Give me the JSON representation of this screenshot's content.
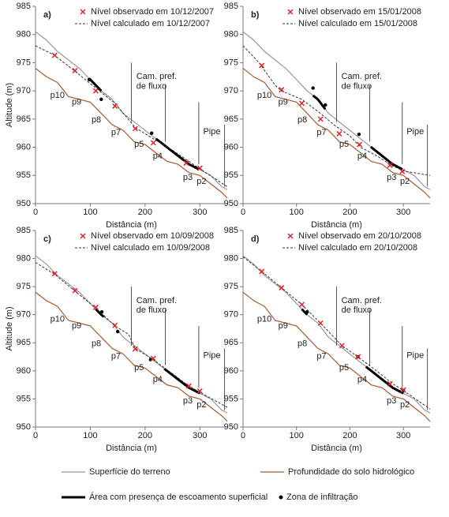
{
  "chart_data": [
    {
      "type": "line",
      "title": "a)",
      "y_label": "Altitude (m)",
      "x_label": "Distância (m)",
      "xlim": [
        0,
        350
      ],
      "xticks": [
        0,
        100,
        200,
        300
      ],
      "ylim": [
        950,
        985
      ],
      "yticks": [
        950,
        955,
        960,
        965,
        970,
        975,
        980,
        985
      ],
      "series": [
        {
          "name": "Nível observado em 10/12/2007",
          "color": "#d9262a",
          "marker": "x",
          "x": [
            35,
            72,
            110,
            145,
            182,
            215,
            275,
            300
          ],
          "values": [
            976.3,
            973.6,
            970,
            967.3,
            963.3,
            960.8,
            957.2,
            956.3
          ]
        },
        {
          "name": "Nível calculado em 10/12/2007",
          "color": "#333333",
          "dash": true,
          "x": [
            0,
            35,
            72,
            110,
            145,
            182,
            215,
            250,
            280,
            300,
            350
          ],
          "values": [
            978,
            976.3,
            973.5,
            970.5,
            967.8,
            963.5,
            961.5,
            959.5,
            957.5,
            956.2,
            953
          ]
        }
      ],
      "runoff": [
        [
          98,
          120
        ],
        [
          220,
          298
        ]
      ],
      "infiltration": {
        "x": [
          98,
          120,
          212
        ],
        "values": [
          972,
          968.5,
          962.5
        ]
      },
      "vlines": [
        {
          "x": 175,
          "ylim": [
            964.5,
            975
          ]
        },
        {
          "x": 237,
          "ylim": [
            961,
            971
          ]
        },
        {
          "x": 298,
          "ylim": [
            957,
            968
          ]
        },
        {
          "x": 345,
          "ylim": [
            953,
            964
          ]
        }
      ],
      "annotations": [
        {
          "text": "p10",
          "x": 40,
          "y": 969.2
        },
        {
          "text": "p9",
          "x": 75,
          "y": 968
        },
        {
          "text": "p8",
          "x": 111,
          "y": 964.8
        },
        {
          "text": "p7",
          "x": 147,
          "y": 962.6
        },
        {
          "text": "p5",
          "x": 189,
          "y": 960.5
        },
        {
          "text": "p4",
          "x": 223,
          "y": 958.4
        },
        {
          "text": "p3",
          "x": 278,
          "y": 954.6
        },
        {
          "text": "p2",
          "x": 303,
          "y": 953.9
        },
        {
          "text": "Cam. pref.",
          "x": 184,
          "y": 972.5
        },
        {
          "text": "de fluxo",
          "x": 184,
          "y": 970.8
        },
        {
          "text": "Pipe",
          "x": 306,
          "y": 962.7
        }
      ]
    },
    {
      "type": "line",
      "title": "b)",
      "x_label": "Distância (m)",
      "xlim": [
        0,
        350
      ],
      "xticks": [
        0,
        100,
        200,
        300
      ],
      "ylim": [
        950,
        985
      ],
      "yticks": [
        950,
        955,
        960,
        965,
        970,
        975,
        980,
        985
      ],
      "series": [
        {
          "name": "Nível observado em 15/01/2008",
          "color": "#d9262a",
          "marker": "x",
          "x": [
            35,
            72,
            110,
            145,
            180,
            218,
            275,
            298
          ],
          "values": [
            974.5,
            970.2,
            967.8,
            965,
            962.4,
            960.5,
            956.8,
            955.7
          ]
        },
        {
          "name": "Nível calculado em 15/01/2008",
          "color": "#333333",
          "dash": true,
          "x": [
            0,
            30,
            60,
            72,
            110,
            145,
            170,
            200,
            220,
            250,
            280,
            300,
            350
          ],
          "values": [
            978,
            975,
            971,
            970,
            968.5,
            966,
            964,
            962,
            960,
            958.5,
            956.7,
            955.8,
            955
          ]
        }
      ],
      "runoff": [
        [
          131,
          154
        ],
        [
          239,
          298
        ]
      ],
      "infiltration": {
        "x": [
          131,
          154,
          217
        ],
        "values": [
          970.5,
          967.5,
          962.3
        ]
      },
      "vlines": [
        {
          "x": 175,
          "ylim": [
            964.5,
            975
          ]
        },
        {
          "x": 237,
          "ylim": [
            961,
            971
          ]
        },
        {
          "x": 298,
          "ylim": [
            957,
            968
          ]
        },
        {
          "x": 345,
          "ylim": [
            953,
            964
          ]
        }
      ],
      "annotations": [
        {
          "text": "p10",
          "x": 40,
          "y": 969.2
        },
        {
          "text": "p9",
          "x": 75,
          "y": 968
        },
        {
          "text": "p8",
          "x": 111,
          "y": 964.8
        },
        {
          "text": "p7",
          "x": 147,
          "y": 962.6
        },
        {
          "text": "p5",
          "x": 189,
          "y": 960.5
        },
        {
          "text": "p4",
          "x": 223,
          "y": 958.4
        },
        {
          "text": "p3",
          "x": 278,
          "y": 954.6
        },
        {
          "text": "p2",
          "x": 303,
          "y": 953.9
        },
        {
          "text": "Cam. pref.",
          "x": 184,
          "y": 972.5
        },
        {
          "text": "de fluxo",
          "x": 184,
          "y": 970.8
        },
        {
          "text": "Pipe",
          "x": 306,
          "y": 962.7
        }
      ]
    },
    {
      "type": "line",
      "title": "c)",
      "y_label": "Altitude (m)",
      "x_label": "Distância (m)",
      "xlim": [
        0,
        350
      ],
      "xticks": [
        0,
        100,
        200,
        300
      ],
      "ylim": [
        950,
        985
      ],
      "yticks": [
        950,
        955,
        960,
        965,
        970,
        975,
        980,
        985
      ],
      "series": [
        {
          "name": "Nível observado em 10/09/2008",
          "color": "#d9262a",
          "marker": "x",
          "x": [
            35,
            72,
            110,
            145,
            182,
            215,
            280,
            300
          ],
          "values": [
            977.3,
            974.3,
            971.3,
            968.1,
            963.9,
            962.2,
            957.3,
            956.4
          ]
        },
        {
          "name": "Nível calculado em 10/09/2008",
          "color": "#333333",
          "dash": true,
          "x": [
            0,
            35,
            72,
            110,
            145,
            170,
            182,
            215,
            250,
            280,
            300,
            350
          ],
          "values": [
            979.3,
            977.2,
            974.2,
            971.2,
            968,
            966.5,
            964,
            962,
            959.5,
            957.3,
            956.2,
            953.5
          ]
        }
      ],
      "runoff": [
        [
          110,
          125
        ],
        [
          235,
          300
        ]
      ],
      "infiltration": {
        "x": [
          121,
          150,
          210
        ],
        "values": [
          970.5,
          967,
          962
        ]
      },
      "vlines": [
        {
          "x": 175,
          "ylim": [
            964.5,
            975
          ]
        },
        {
          "x": 237,
          "ylim": [
            961,
            971
          ]
        },
        {
          "x": 298,
          "ylim": [
            957,
            968
          ]
        },
        {
          "x": 345,
          "ylim": [
            953,
            964
          ]
        }
      ],
      "annotations": [
        {
          "text": "p10",
          "x": 40,
          "y": 969.2
        },
        {
          "text": "p9",
          "x": 75,
          "y": 968
        },
        {
          "text": "p8",
          "x": 111,
          "y": 964.8
        },
        {
          "text": "p7",
          "x": 147,
          "y": 962.6
        },
        {
          "text": "p5",
          "x": 189,
          "y": 960.5
        },
        {
          "text": "p4",
          "x": 223,
          "y": 958.4
        },
        {
          "text": "p3",
          "x": 278,
          "y": 954.6
        },
        {
          "text": "p2",
          "x": 303,
          "y": 953.9
        },
        {
          "text": "Cam. pref.",
          "x": 184,
          "y": 972.5
        },
        {
          "text": "de fluxo",
          "x": 184,
          "y": 970.8
        },
        {
          "text": "Pipe",
          "x": 306,
          "y": 962.7
        }
      ]
    },
    {
      "type": "line",
      "title": "d)",
      "x_label": "Distância (m)",
      "xlim": [
        0,
        350
      ],
      "xticks": [
        0,
        100,
        200,
        300
      ],
      "ylim": [
        950,
        985
      ],
      "yticks": [
        950,
        955,
        960,
        965,
        970,
        975,
        980,
        985
      ],
      "series": [
        {
          "name": "Nível observado em 20/10/2008",
          "color": "#d9262a",
          "marker": "x",
          "x": [
            35,
            72,
            110,
            145,
            185,
            215,
            275,
            300
          ],
          "values": [
            977.7,
            974.8,
            971.8,
            968.5,
            964.5,
            962.5,
            957.7,
            956.6
          ]
        },
        {
          "name": "Nível calculado em 20/10/2008",
          "color": "#333333",
          "dash": true,
          "x": [
            0,
            35,
            72,
            110,
            145,
            185,
            215,
            250,
            280,
            300,
            350
          ],
          "values": [
            980.3,
            977.7,
            974.8,
            971.8,
            968.5,
            964.5,
            962.5,
            960,
            957.7,
            956.5,
            953.2
          ]
        }
      ],
      "runoff": [
        [
          110,
          120
        ],
        [
          230,
          300
        ]
      ],
      "infiltration": {
        "x": [
          120,
          215,
          300
        ],
        "values": [
          970.5,
          962.5,
          956.5
        ]
      },
      "vlines": [
        {
          "x": 175,
          "ylim": [
            964.5,
            975
          ]
        },
        {
          "x": 237,
          "ylim": [
            961,
            971
          ]
        },
        {
          "x": 298,
          "ylim": [
            957,
            968
          ]
        },
        {
          "x": 345,
          "ylim": [
            953,
            964
          ]
        }
      ],
      "annotations": [
        {
          "text": "p10",
          "x": 40,
          "y": 969.2
        },
        {
          "text": "p9",
          "x": 75,
          "y": 968
        },
        {
          "text": "p8",
          "x": 111,
          "y": 964.8
        },
        {
          "text": "p7",
          "x": 147,
          "y": 962.6
        },
        {
          "text": "p5",
          "x": 189,
          "y": 960.5
        },
        {
          "text": "p4",
          "x": 223,
          "y": 958.4
        },
        {
          "text": "p3",
          "x": 278,
          "y": 954.6
        },
        {
          "text": "p2",
          "x": 303,
          "y": 953.9
        },
        {
          "text": "Cam. pref.",
          "x": 184,
          "y": 972.5
        },
        {
          "text": "de fluxo",
          "x": 184,
          "y": 970.8
        },
        {
          "text": "Pipe",
          "x": 306,
          "y": 962.7
        }
      ]
    }
  ],
  "terrain": {
    "name": "Superfície do terreno",
    "color": "#999999",
    "x": [
      0,
      20,
      40,
      60,
      80,
      100,
      120,
      140,
      160,
      180,
      200,
      220,
      240,
      260,
      280,
      300,
      320,
      340,
      350
    ],
    "values": [
      980.5,
      979,
      977,
      975.5,
      974,
      972,
      970,
      968.5,
      966,
      964.5,
      963,
      961.5,
      960,
      958.5,
      957,
      956,
      955,
      953,
      952.5
    ]
  },
  "soil": {
    "name": "Profundidade do solo hidrológico",
    "color": "#a8592a",
    "x": [
      0,
      20,
      40,
      60,
      80,
      100,
      120,
      140,
      160,
      180,
      200,
      220,
      240,
      260,
      280,
      300,
      320,
      340,
      350
    ],
    "values": [
      974,
      972.5,
      971.5,
      969,
      968.5,
      968,
      966,
      964,
      963,
      961,
      960.5,
      959,
      957.5,
      957,
      955.5,
      955,
      953.5,
      952,
      951
    ]
  },
  "runoff_legend": {
    "name": "Área com presença de escoamento superficial",
    "color": "#000000"
  },
  "infiltration_legend": {
    "name": "Zona de infiltração",
    "color": "#000000"
  }
}
